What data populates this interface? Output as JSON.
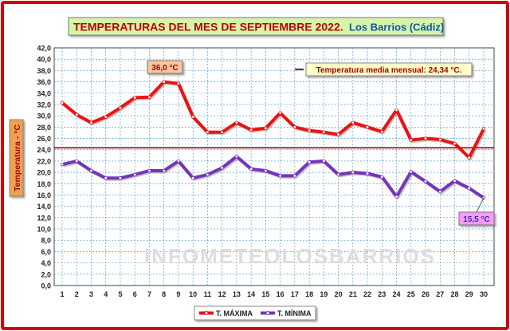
{
  "chart_data": {
    "type": "line",
    "title": "TEMPERATURAS DEL MES DE SEPTIEMBRE 2022.",
    "subtitle": "Los Barrios (Cádiz)",
    "ylabel": "Temperatura - °C",
    "xlabel": "",
    "ylim": [
      0,
      42
    ],
    "ytick_step": 2,
    "ytick_labels": [
      "0,0",
      "2,0",
      "4,0",
      "6,0",
      "8,0",
      "10,0",
      "12,0",
      "14,0",
      "16,0",
      "18,0",
      "20,0",
      "22,0",
      "24,0",
      "26,0",
      "28,0",
      "30,0",
      "32,0",
      "34,0",
      "36,0",
      "38,0",
      "40,0",
      "42,0"
    ],
    "categories": [
      "1",
      "2",
      "3",
      "4",
      "5",
      "6",
      "7",
      "8",
      "9",
      "10",
      "11",
      "12",
      "13",
      "14",
      "15",
      "16",
      "17",
      "18",
      "19",
      "20",
      "21",
      "22",
      "23",
      "24",
      "25",
      "26",
      "27",
      "28",
      "29",
      "30"
    ],
    "grid": true,
    "series": [
      {
        "name": "T. MÁXIMA",
        "color": "#ee1111",
        "values": [
          32.3,
          30.2,
          28.8,
          29.8,
          31.4,
          33.2,
          33.3,
          36.0,
          35.7,
          29.8,
          27.1,
          27.1,
          28.8,
          27.5,
          27.8,
          30.5,
          28.0,
          27.4,
          27.1,
          26.7,
          28.8,
          28.0,
          27.2,
          31.0,
          25.7,
          26.0,
          25.8,
          25.1,
          22.6,
          27.7
        ]
      },
      {
        "name": "T. MÍNIMA",
        "color": "#7733bb",
        "values": [
          21.4,
          22.0,
          20.3,
          19.0,
          19.0,
          19.6,
          20.3,
          20.3,
          22.0,
          19.0,
          19.6,
          20.8,
          22.8,
          20.6,
          20.3,
          19.4,
          19.4,
          21.8,
          22.0,
          19.6,
          20.0,
          19.8,
          19.2,
          15.7,
          20.1,
          18.4,
          16.6,
          18.5,
          17.2,
          15.5
        ]
      }
    ],
    "reference_line": {
      "label": "Temperatura media mensual: 24,34 °C.",
      "value": 24.34,
      "color": "#990000"
    },
    "annotations": [
      {
        "text": "36,0 °C",
        "x": "8",
        "value": 36.0,
        "series": "T. MÁXIMA"
      },
      {
        "text": "15,5 °C",
        "x": "30",
        "value": 15.5,
        "series": "T. MÍNIMA"
      }
    ],
    "watermark": "INFOMETEOLOSBARRIOS",
    "legend_position": "bottom-center"
  },
  "colors": {
    "border": "#d40000",
    "title_bg": "#d7f5a8",
    "title_text": "#bb0000",
    "subtitle_text": "#1155aa",
    "plot_bg": "#ffffff",
    "grid": "#3a8fd6",
    "axis_label_bg": "#f0a050",
    "ref_box_bg": "#ffffc8",
    "ann_max_bg": "#f9c6a0",
    "ann_min_bg": "#ff99ff"
  }
}
